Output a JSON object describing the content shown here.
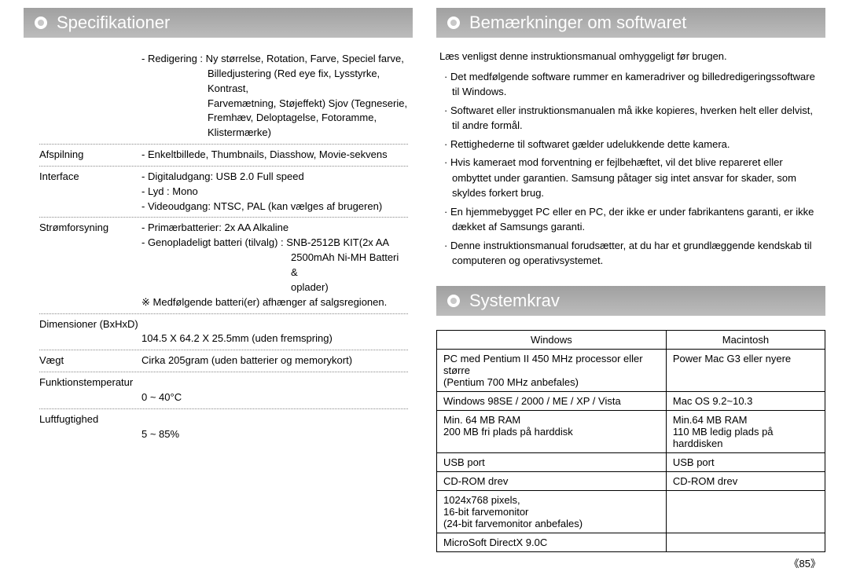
{
  "colors": {
    "header_bg_top": "#a0a0a0",
    "header_bg_bot": "#bcbcbc",
    "header_text": "#ffffff",
    "body_text": "#000000",
    "divider": "#888888",
    "table_border": "#000000",
    "background": "#ffffff"
  },
  "left": {
    "title": "Specifikationer",
    "editing_label": "- Redigering :",
    "editing_lines": [
      "Ny størrelse, Rotation, Farve, Speciel farve,",
      "Billedjustering (Red eye fix, Lysstyrke, Kontrast,",
      "Farvemætning, Støjeffekt) Sjov (Tegneserie,",
      "Fremhæv, Deloptagelse, Fotoramme,",
      "Klistermærke)"
    ],
    "rows": [
      {
        "label": "Afspilning",
        "value": "- Enkeltbillede, Thumbnails, Diasshow, Movie-sekvens"
      },
      {
        "label": "Interface",
        "value": "- Digitaludgang: USB 2.0 Full speed\n- Lyd : Mono\n- Videoudgang: NTSC, PAL (kan vælges af brugeren)"
      },
      {
        "label": "Strømforsyning",
        "value": "- Primærbatterier: 2x AA Alkaline\n- Genopladeligt batteri (tilvalg) : SNB-2512B KIT(2x AA",
        "extra_indent": "2500mAh Ni-MH Batteri &\noplader)",
        "note": "※ Medfølgende batteri(er) afhænger af salgsregionen."
      },
      {
        "label": "Dimensioner (BxHxD)",
        "value_below": "104.5 X 64.2 X 25.5mm (uden fremspring)"
      },
      {
        "label": "Vægt",
        "value": "Cirka 205gram (uden batterier og memorykort)"
      },
      {
        "label": "Funktionstemperatur",
        "value_below": "0 ~ 40°C"
      },
      {
        "label": "Luftfugtighed",
        "value_below": "5 ~ 85%",
        "noborder": true
      }
    ]
  },
  "right_notes": {
    "title": "Bemærkninger om softwaret",
    "lead": "Læs venligst denne instruktionsmanual omhyggeligt før brugen.",
    "items": [
      "Det medfølgende software rummer en kameradriver og billedredigeringssoftware til Windows.",
      "Softwaret eller instruktionsmanualen må ikke kopieres, hverken helt eller delvist, til andre formål.",
      "Rettighederne til softwaret gælder udelukkende dette kamera.",
      "Hvis kameraet mod forventning er fejlbehæftet, vil det blive repareret eller ombyttet under garantien. Samsung påtager sig intet ansvar for skader, som skyldes forkert brug.",
      "En hjemmebygget PC eller en PC, der ikke er under fabrikantens garanti, er ikke dækket af Samsungs garanti.",
      "Denne instruktionsmanual forudsætter, at du har et grundlæggende kendskab til computeren og operativsystemet."
    ]
  },
  "sysreq": {
    "title": "Systemkrav",
    "headers": {
      "win": "Windows",
      "mac": "Macintosh"
    },
    "rows": [
      {
        "win": "PC med Pentium II 450 MHz processor eller større\n(Pentium 700 MHz anbefales)",
        "mac": "Power Mac G3 eller nyere"
      },
      {
        "win": "Windows 98SE / 2000 / ME / XP / Vista",
        "mac": "Mac OS 9.2~10.3"
      },
      {
        "win": "Min. 64 MB RAM\n200 MB fri plads på harddisk",
        "mac": "Min.64 MB RAM\n110 MB ledig plads på harddisken"
      },
      {
        "win": "USB port",
        "mac": "USB port"
      },
      {
        "win": "CD-ROM drev",
        "mac": "CD-ROM drev"
      },
      {
        "win": "1024x768 pixels,\n16-bit farvemonitor\n(24-bit farvemonitor anbefales)",
        "mac": ""
      },
      {
        "win": "MicroSoft DirectX 9.0C",
        "mac": ""
      }
    ]
  },
  "page_number": "《85》"
}
